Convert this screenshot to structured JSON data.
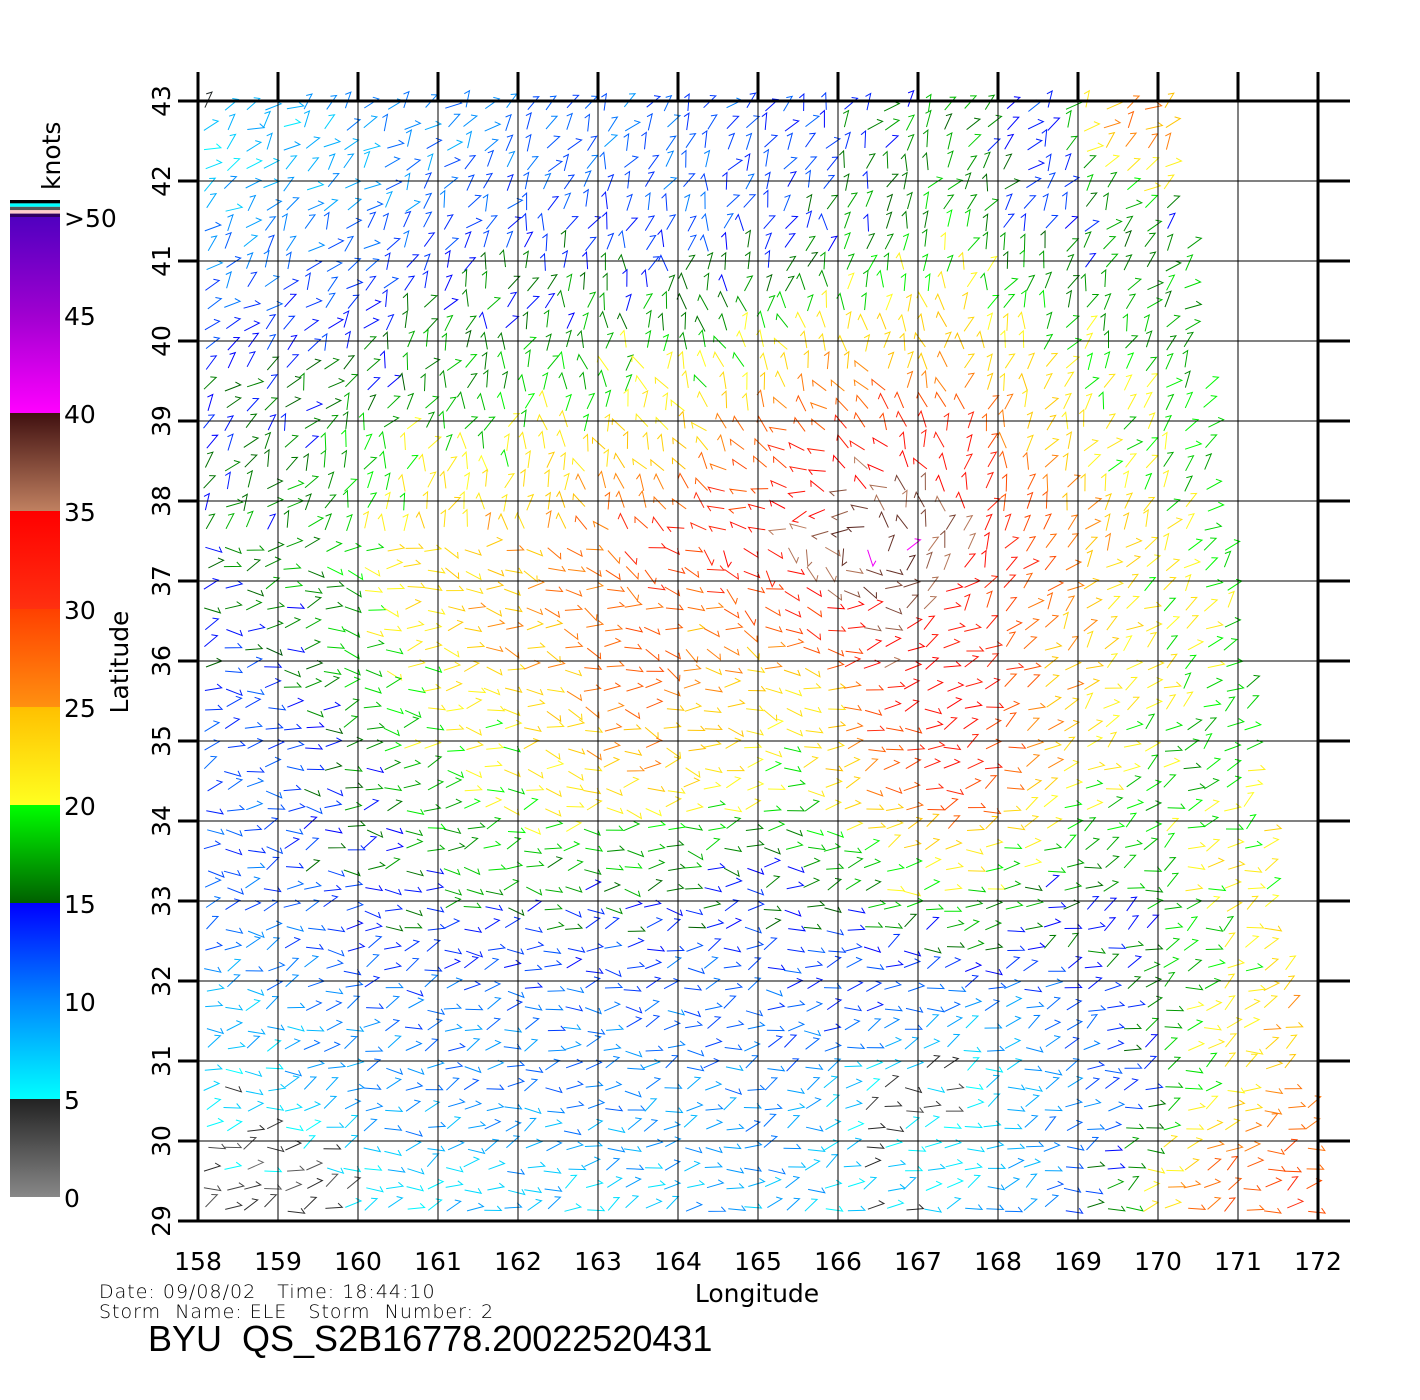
{
  "chart_data": {
    "type": "vector-field",
    "xlabel": "Longitude",
    "ylabel": "Latitude",
    "xlim": [
      158,
      172
    ],
    "ylim": [
      29,
      43
    ],
    "x_ticks": [
      "158",
      "159",
      "160",
      "161",
      "162",
      "163",
      "164",
      "165",
      "166",
      "167",
      "168",
      "169",
      "170",
      "171",
      "172"
    ],
    "y_ticks": [
      "43",
      "42",
      "41",
      "40",
      "39",
      "38",
      "37",
      "36",
      "35",
      "34",
      "33",
      "32",
      "31",
      "30",
      "29"
    ],
    "grid": true,
    "colorbar": {
      "label": "knots",
      "ticks": [
        "0",
        "5",
        "10",
        "15",
        "20",
        "25",
        "30",
        "35",
        "40",
        "45",
        ">50"
      ],
      "stops": [
        {
          "value": 0,
          "color": "#888888"
        },
        {
          "value": 5,
          "color": "#222222"
        },
        {
          "value": 5.01,
          "color": "#00ffff"
        },
        {
          "value": 10,
          "color": "#0088ff"
        },
        {
          "value": 15,
          "color": "#0000ff"
        },
        {
          "value": 15.01,
          "color": "#006000"
        },
        {
          "value": 20,
          "color": "#00ff00"
        },
        {
          "value": 20.01,
          "color": "#ffff20"
        },
        {
          "value": 25,
          "color": "#ffc000"
        },
        {
          "value": 25.01,
          "color": "#ff9010"
        },
        {
          "value": 30,
          "color": "#ff4000"
        },
        {
          "value": 30.01,
          "color": "#ff3010"
        },
        {
          "value": 35,
          "color": "#ff0000"
        },
        {
          "value": 35.01,
          "color": "#c08060"
        },
        {
          "value": 40,
          "color": "#401010"
        },
        {
          "value": 40.01,
          "color": "#ff00ff"
        },
        {
          "value": 45,
          "color": "#a000d0"
        },
        {
          "value": 50,
          "color": "#5000c0"
        }
      ],
      "extra_swatches": [
        "#000000",
        "#00ffff",
        "#555555",
        "#ffcccc",
        "#300060"
      ]
    },
    "speed_grid_knots": {
      "lon_centers": [
        158.5,
        159.5,
        160.5,
        161.5,
        162.5,
        163.5,
        164.5,
        165.5,
        166.5,
        167.5,
        168.5,
        169.5,
        170.5,
        171.5
      ],
      "lat_centers": [
        42.5,
        41.5,
        40.5,
        39.5,
        38.5,
        37.5,
        36.5,
        35.5,
        34.5,
        33.5,
        32.5,
        31.5,
        30.5,
        29.5
      ],
      "values": [
        [
          7,
          8,
          10,
          10,
          11,
          11,
          12,
          13,
          16,
          17,
          12,
          26,
          null,
          null
        ],
        [
          9,
          10,
          11,
          12,
          14,
          12,
          12,
          14,
          16,
          18,
          12,
          16,
          null,
          null
        ],
        [
          12,
          13,
          15,
          16,
          16,
          16,
          16,
          18,
          20,
          22,
          18,
          16,
          18,
          null
        ],
        [
          14,
          15,
          16,
          17,
          18,
          20,
          20,
          24,
          26,
          26,
          22,
          20,
          18,
          null
        ],
        [
          15,
          17,
          20,
          20,
          22,
          24,
          26,
          32,
          35,
          33,
          24,
          20,
          18,
          null
        ],
        [
          16,
          18,
          22,
          24,
          26,
          30,
          33,
          36,
          40,
          36,
          30,
          24,
          20,
          null
        ],
        [
          14,
          17,
          22,
          24,
          26,
          28,
          26,
          30,
          36,
          33,
          26,
          22,
          20,
          null
        ],
        [
          13,
          16,
          20,
          22,
          24,
          28,
          24,
          20,
          32,
          34,
          26,
          22,
          19,
          16
        ],
        [
          12,
          14,
          18,
          20,
          22,
          24,
          22,
          20,
          28,
          33,
          24,
          20,
          17,
          22
        ],
        [
          12,
          14,
          16,
          18,
          17,
          18,
          16,
          16,
          20,
          22,
          18,
          16,
          22,
          22
        ],
        [
          11,
          12,
          14,
          14,
          14,
          13,
          13,
          13,
          15,
          16,
          14,
          16,
          18,
          22
        ],
        [
          8,
          10,
          11,
          11,
          11,
          11,
          11,
          12,
          12,
          8,
          11,
          14,
          20,
          24
        ],
        [
          6,
          8,
          10,
          10,
          10,
          10,
          10,
          10,
          4,
          4,
          10,
          12,
          20,
          26
        ],
        [
          3,
          4,
          7,
          8,
          8,
          8,
          9,
          8,
          6,
          7,
          10,
          17,
          28,
          30
        ]
      ]
    }
  },
  "info": {
    "date_line": "Date: 09/08/02   Time: 18:44:10",
    "storm_line": "Storm  Name: ELE   Storm  Number: 2",
    "title": "BYU  QS_S2B16778.20022520431"
  }
}
